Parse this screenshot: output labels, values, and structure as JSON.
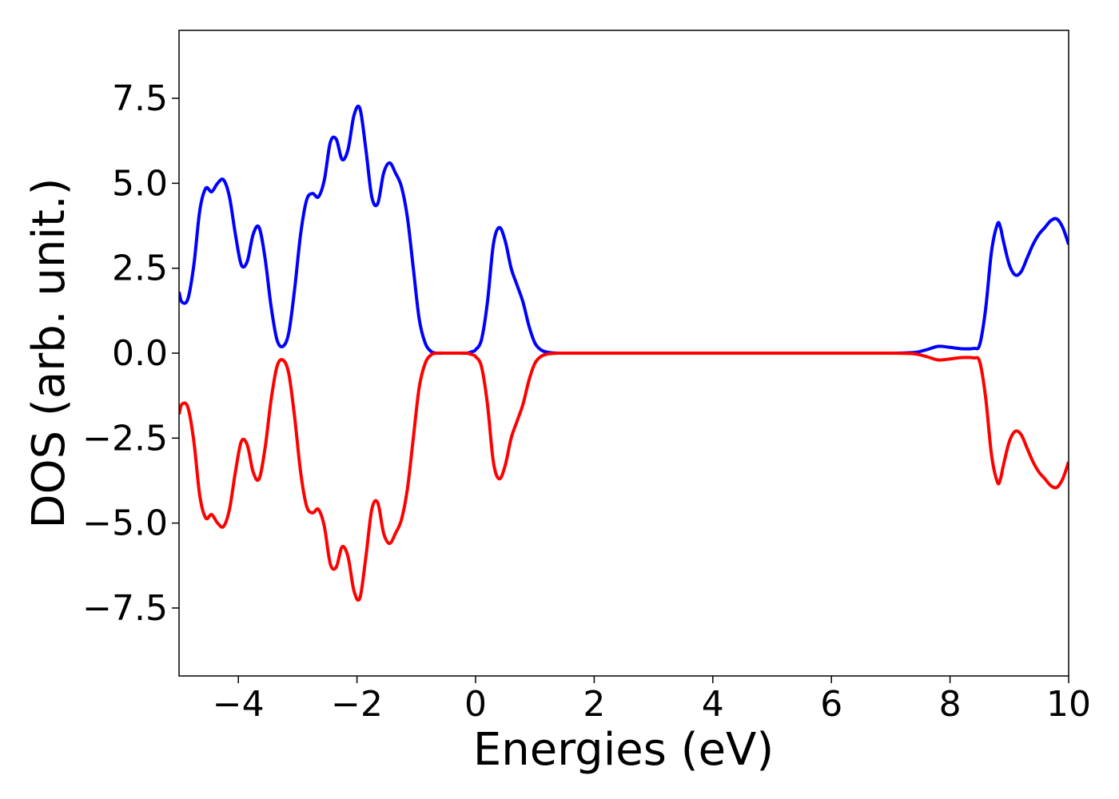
{
  "chart_data": {
    "type": "line",
    "title": "",
    "xlabel": "Energies (eV)",
    "ylabel": "DOS (arb. unit.)",
    "xlim": [
      -5,
      10
    ],
    "ylim": [
      -9.5,
      9.5
    ],
    "grid": false,
    "legend": "none",
    "x_ticks": [
      {
        "value": -4,
        "label": "−4"
      },
      {
        "value": -2,
        "label": "−2"
      },
      {
        "value": 0,
        "label": "0"
      },
      {
        "value": 2,
        "label": "2"
      },
      {
        "value": 4,
        "label": "4"
      },
      {
        "value": 6,
        "label": "6"
      },
      {
        "value": 8,
        "label": "8"
      },
      {
        "value": 10,
        "label": "10"
      }
    ],
    "y_ticks": [
      {
        "value": 7.5,
        "label": "7.5"
      },
      {
        "value": 5.0,
        "label": "5.0"
      },
      {
        "value": 2.5,
        "label": "2.5"
      },
      {
        "value": 0.0,
        "label": "0.0"
      },
      {
        "value": -2.5,
        "label": "−2.5"
      },
      {
        "value": -5.0,
        "label": "−5.0"
      },
      {
        "value": -7.5,
        "label": "−7.5"
      }
    ],
    "series": [
      {
        "color": "#0000ff",
        "x": [
          -5.0,
          -4.95,
          -4.85,
          -4.75,
          -4.65,
          -4.55,
          -4.45,
          -4.35,
          -4.25,
          -4.15,
          -4.05,
          -3.95,
          -3.85,
          -3.75,
          -3.65,
          -3.55,
          -3.45,
          -3.35,
          -3.25,
          -3.15,
          -3.05,
          -2.95,
          -2.85,
          -2.75,
          -2.65,
          -2.55,
          -2.45,
          -2.35,
          -2.25,
          -2.15,
          -2.05,
          -1.95,
          -1.85,
          -1.75,
          -1.65,
          -1.55,
          -1.45,
          -1.35,
          -1.25,
          -1.15,
          -1.05,
          -0.95,
          -0.85,
          -0.75,
          -0.65,
          -0.55,
          -0.45,
          -0.35,
          -0.25,
          -0.15,
          -0.05,
          0.0,
          0.1,
          0.2,
          0.3,
          0.4,
          0.5,
          0.6,
          0.7,
          0.8,
          0.9,
          1.0,
          1.1,
          1.2,
          1.3,
          1.4,
          1.5,
          1.6,
          2.0,
          4.0,
          6.0,
          7.0,
          7.4,
          7.6,
          7.8,
          8.0,
          8.2,
          8.4,
          8.5,
          8.6,
          8.7,
          8.8,
          8.85,
          8.9,
          9.0,
          9.1,
          9.2,
          9.3,
          9.4,
          9.5,
          9.6,
          9.7,
          9.8,
          9.9,
          10.0
        ],
        "y": [
          1.8,
          1.5,
          1.6,
          2.6,
          4.2,
          4.85,
          4.75,
          5.0,
          5.1,
          4.6,
          3.5,
          2.6,
          2.7,
          3.5,
          3.7,
          2.8,
          1.4,
          0.4,
          0.2,
          0.6,
          1.9,
          3.5,
          4.5,
          4.7,
          4.6,
          5.1,
          6.2,
          6.3,
          5.7,
          6.0,
          7.0,
          7.2,
          6.0,
          4.6,
          4.4,
          5.3,
          5.6,
          5.3,
          4.9,
          4.0,
          2.5,
          1.0,
          0.3,
          0.05,
          0.0,
          0.0,
          0.0,
          0.0,
          0.0,
          0.0,
          0.05,
          0.1,
          0.4,
          1.5,
          3.2,
          3.7,
          3.3,
          2.5,
          2.0,
          1.5,
          0.8,
          0.3,
          0.1,
          0.03,
          0.01,
          0.0,
          0.0,
          0.0,
          0.0,
          0.0,
          0.0,
          0.0,
          0.02,
          0.1,
          0.2,
          0.17,
          0.13,
          0.14,
          0.25,
          1.3,
          3.0,
          3.8,
          3.7,
          3.3,
          2.6,
          2.3,
          2.4,
          2.8,
          3.2,
          3.5,
          3.7,
          3.9,
          3.95,
          3.7,
          3.2
        ]
      },
      {
        "color": "#ff0000",
        "x": [
          -5.0,
          -4.95,
          -4.85,
          -4.75,
          -4.65,
          -4.55,
          -4.45,
          -4.35,
          -4.25,
          -4.15,
          -4.05,
          -3.95,
          -3.85,
          -3.75,
          -3.65,
          -3.55,
          -3.45,
          -3.35,
          -3.25,
          -3.15,
          -3.05,
          -2.95,
          -2.85,
          -2.75,
          -2.65,
          -2.55,
          -2.45,
          -2.35,
          -2.25,
          -2.15,
          -2.05,
          -1.95,
          -1.85,
          -1.75,
          -1.65,
          -1.55,
          -1.45,
          -1.35,
          -1.25,
          -1.15,
          -1.05,
          -0.95,
          -0.85,
          -0.75,
          -0.65,
          -0.55,
          -0.45,
          -0.35,
          -0.25,
          -0.15,
          -0.05,
          0.0,
          0.1,
          0.2,
          0.3,
          0.4,
          0.5,
          0.6,
          0.7,
          0.8,
          0.9,
          1.0,
          1.1,
          1.2,
          1.3,
          1.4,
          1.5,
          1.6,
          2.0,
          4.0,
          6.0,
          7.0,
          7.4,
          7.6,
          7.8,
          8.0,
          8.2,
          8.4,
          8.5,
          8.6,
          8.7,
          8.8,
          8.85,
          8.9,
          9.0,
          9.1,
          9.2,
          9.3,
          9.4,
          9.5,
          9.6,
          9.7,
          9.8,
          9.9,
          10.0
        ],
        "y": [
          -1.8,
          -1.5,
          -1.6,
          -2.6,
          -4.2,
          -4.85,
          -4.75,
          -5.0,
          -5.1,
          -4.6,
          -3.5,
          -2.6,
          -2.7,
          -3.5,
          -3.7,
          -2.8,
          -1.4,
          -0.4,
          -0.2,
          -0.6,
          -1.9,
          -3.5,
          -4.5,
          -4.7,
          -4.6,
          -5.1,
          -6.2,
          -6.3,
          -5.7,
          -6.0,
          -7.0,
          -7.2,
          -6.0,
          -4.6,
          -4.4,
          -5.3,
          -5.6,
          -5.3,
          -4.9,
          -4.0,
          -2.5,
          -1.0,
          -0.3,
          -0.05,
          0.0,
          0.0,
          0.0,
          0.0,
          0.0,
          0.0,
          -0.05,
          -0.1,
          -0.4,
          -1.5,
          -3.2,
          -3.7,
          -3.3,
          -2.5,
          -2.0,
          -1.5,
          -0.8,
          -0.3,
          -0.1,
          -0.03,
          -0.01,
          0.0,
          0.0,
          0.0,
          0.0,
          0.0,
          0.0,
          0.0,
          -0.02,
          -0.1,
          -0.2,
          -0.17,
          -0.13,
          -0.14,
          -0.25,
          -1.3,
          -3.0,
          -3.8,
          -3.7,
          -3.3,
          -2.6,
          -2.3,
          -2.4,
          -2.8,
          -3.2,
          -3.5,
          -3.7,
          -3.9,
          -3.95,
          -3.7,
          -3.2
        ]
      }
    ]
  }
}
